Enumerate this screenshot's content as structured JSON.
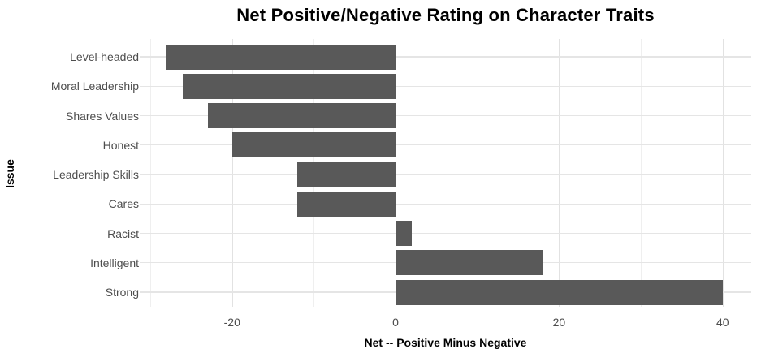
{
  "chart_data": {
    "type": "bar",
    "orientation": "horizontal",
    "title": "Net Positive/Negative Rating on Character Traits",
    "xlabel": "Net -- Positive Minus Negative",
    "ylabel": "Issue",
    "categories": [
      "Level-headed",
      "Moral Leadership",
      "Shares Values",
      "Honest",
      "Leadership Skills",
      "Cares",
      "Racist",
      "Intelligent",
      "Strong"
    ],
    "values": [
      -28,
      -26,
      -23,
      -20,
      -12,
      -12,
      2,
      18,
      40
    ],
    "xlim": [
      -31.3,
      43.5
    ],
    "x_major_ticks": [
      -20,
      0,
      20,
      40
    ],
    "x_minor_ticks": [
      -30,
      -10,
      10,
      30
    ],
    "x_tick_labels": [
      "-20",
      "0",
      "20",
      "40"
    ],
    "grid": true,
    "legend": false,
    "bar_color": "#595959",
    "major_grid_color": "#e2e2e2",
    "minor_grid_color": "#efefef",
    "tick_label_color": "#4d4d4d",
    "background_color": "#ffffff"
  }
}
